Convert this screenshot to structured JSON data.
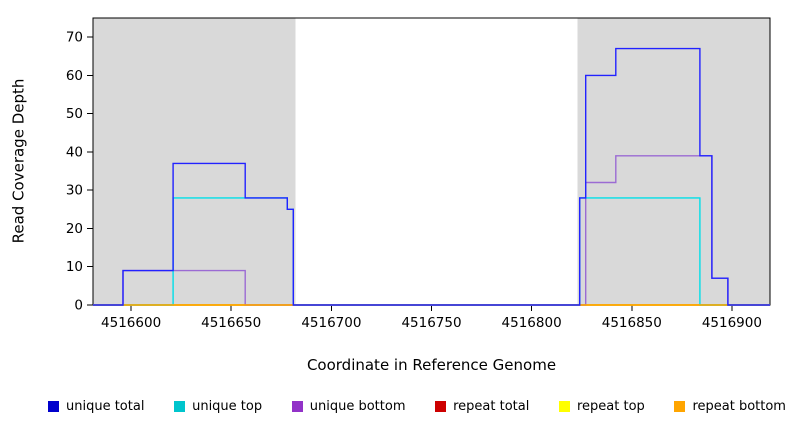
{
  "chart_data": {
    "type": "line",
    "step": true,
    "title": "",
    "xlabel": "Coordinate in Reference Genome",
    "ylabel": "Read Coverage Depth",
    "xlim": [
      4516581,
      4516919
    ],
    "ylim": [
      0,
      75
    ],
    "x_ticks": [
      4516600,
      4516650,
      4516700,
      4516750,
      4516800,
      4516850,
      4516900
    ],
    "y_ticks": [
      0,
      10,
      20,
      30,
      40,
      50,
      60,
      70
    ],
    "grid": false,
    "legend_position": "bottom",
    "shaded_color": "#d9d9d9",
    "shaded_regions": [
      [
        4516581,
        4516682
      ],
      [
        4516823,
        4516919
      ]
    ],
    "draw_order": [
      3,
      4,
      2,
      1,
      5,
      0
    ],
    "series": [
      {
        "name": "unique total",
        "color": "#2222ff",
        "swatch": "#0000cc",
        "points": [
          [
            4516581,
            0
          ],
          [
            4516596,
            9
          ],
          [
            4516621,
            37
          ],
          [
            4516657,
            28
          ],
          [
            4516678,
            25
          ],
          [
            4516681,
            0
          ],
          [
            4516824,
            28
          ],
          [
            4516827,
            60
          ],
          [
            4516842,
            67
          ],
          [
            4516884,
            39
          ],
          [
            4516890,
            7
          ],
          [
            4516898,
            0
          ],
          [
            4516919,
            0
          ]
        ]
      },
      {
        "name": "unique top",
        "color": "#00dfe8",
        "swatch": "#00c5cd",
        "points": [
          [
            4516581,
            0
          ],
          [
            4516621,
            28
          ],
          [
            4516678,
            25
          ],
          [
            4516681,
            0
          ],
          [
            4516824,
            28
          ],
          [
            4516884,
            0
          ],
          [
            4516919,
            0
          ]
        ]
      },
      {
        "name": "unique bottom",
        "color": "#9b6bd3",
        "swatch": "#9232c8",
        "points": [
          [
            4516581,
            0
          ],
          [
            4516596,
            9
          ],
          [
            4516657,
            0
          ],
          [
            4516827,
            32
          ],
          [
            4516842,
            39
          ],
          [
            4516890,
            7
          ],
          [
            4516898,
            0
          ],
          [
            4516919,
            0
          ]
        ]
      },
      {
        "name": "repeat total",
        "color": "#cd0000",
        "swatch": "#cd0000",
        "points": [
          [
            4516581,
            0
          ],
          [
            4516919,
            0
          ]
        ]
      },
      {
        "name": "repeat top",
        "color": "#ffff00",
        "swatch": "#ffff00",
        "points": [
          [
            4516581,
            0
          ],
          [
            4516919,
            0
          ]
        ]
      },
      {
        "name": "repeat bottom",
        "color": "#ffa500",
        "swatch": "#ffa500",
        "points": [
          [
            4516581,
            0
          ],
          [
            4516919,
            0
          ]
        ]
      }
    ]
  }
}
